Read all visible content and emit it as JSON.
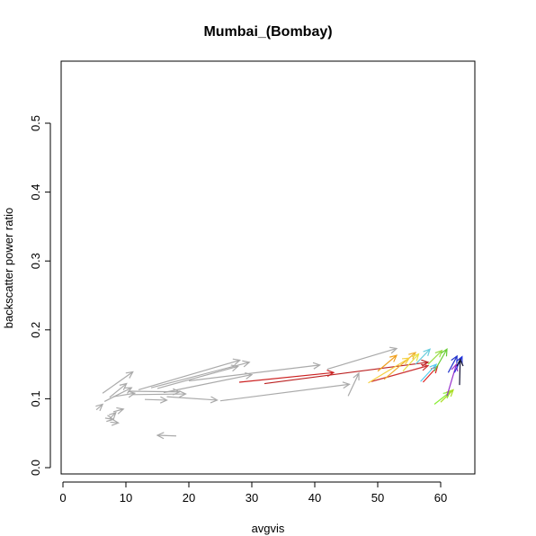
{
  "chart_data": {
    "type": "scatter",
    "title": "Mumbai_(Bombay)",
    "xlabel": "avgvis",
    "ylabel": "backscatter power ratio",
    "xlim": [
      0,
      65
    ],
    "ylim": [
      0,
      0.6
    ],
    "x_ticks": [
      0,
      10,
      20,
      30,
      40,
      50,
      60
    ],
    "y_ticks": [
      0.0,
      0.1,
      0.2,
      0.3,
      0.4,
      0.5
    ],
    "y_tick_labels": [
      "0.0",
      "0.1",
      "0.2",
      "0.3",
      "0.4",
      "0.5"
    ],
    "grid": false,
    "mark": "arrow",
    "arrows": [
      {
        "x0": 6.3,
        "y0": 0.108,
        "x1": 11.1,
        "y1": 0.139,
        "color": "#aaaaaa"
      },
      {
        "x0": 6.6,
        "y0": 0.096,
        "x1": 10.9,
        "y1": 0.116,
        "color": "#aaaaaa"
      },
      {
        "x0": 7.4,
        "y0": 0.102,
        "x1": 10.1,
        "y1": 0.122,
        "color": "#aaaaaa"
      },
      {
        "x0": 8.0,
        "y0": 0.103,
        "x1": 11.4,
        "y1": 0.108,
        "color": "#aaaaaa"
      },
      {
        "x0": 5.3,
        "y0": 0.084,
        "x1": 6.3,
        "y1": 0.092,
        "color": "#aaaaaa"
      },
      {
        "x0": 8.0,
        "y0": 0.081,
        "x1": 9.6,
        "y1": 0.085,
        "color": "#aaaaaa"
      },
      {
        "x0": 7.4,
        "y0": 0.071,
        "x1": 8.4,
        "y1": 0.08,
        "color": "#aaaaaa"
      },
      {
        "x0": 6.7,
        "y0": 0.072,
        "x1": 8.0,
        "y1": 0.07,
        "color": "#aaaaaa"
      },
      {
        "x0": 7.5,
        "y0": 0.066,
        "x1": 8.8,
        "y1": 0.065,
        "color": "#aaaaaa"
      },
      {
        "x0": 12.0,
        "y0": 0.113,
        "x1": 28.1,
        "y1": 0.156,
        "color": "#aaaaaa"
      },
      {
        "x0": 14.0,
        "y0": 0.116,
        "x1": 29.6,
        "y1": 0.153,
        "color": "#aaaaaa"
      },
      {
        "x0": 15.0,
        "y0": 0.115,
        "x1": 27.8,
        "y1": 0.147,
        "color": "#aaaaaa"
      },
      {
        "x0": 16.0,
        "y0": 0.109,
        "x1": 30.0,
        "y1": 0.135,
        "color": "#aaaaaa"
      },
      {
        "x0": 10.5,
        "y0": 0.111,
        "x1": 18.5,
        "y1": 0.11,
        "color": "#aaaaaa"
      },
      {
        "x0": 11.0,
        "y0": 0.106,
        "x1": 19.5,
        "y1": 0.107,
        "color": "#aaaaaa"
      },
      {
        "x0": 16.5,
        "y0": 0.103,
        "x1": 24.5,
        "y1": 0.098,
        "color": "#aaaaaa"
      },
      {
        "x0": 13.0,
        "y0": 0.099,
        "x1": 16.5,
        "y1": 0.098,
        "color": "#aaaaaa"
      },
      {
        "x0": 18.0,
        "y0": 0.046,
        "x1": 15.0,
        "y1": 0.047,
        "color": "#aaaaaa"
      },
      {
        "x0": 20.0,
        "y0": 0.126,
        "x1": 40.8,
        "y1": 0.149,
        "color": "#aaaaaa"
      },
      {
        "x0": 25.0,
        "y0": 0.097,
        "x1": 45.5,
        "y1": 0.121,
        "color": "#aaaaaa"
      },
      {
        "x0": 42.0,
        "y0": 0.143,
        "x1": 53.0,
        "y1": 0.173,
        "color": "#aaaaaa"
      },
      {
        "x0": 45.3,
        "y0": 0.104,
        "x1": 47.0,
        "y1": 0.137,
        "color": "#aaaaaa"
      },
      {
        "x0": 28.0,
        "y0": 0.124,
        "x1": 43.0,
        "y1": 0.138,
        "color": "#cc2222"
      },
      {
        "x0": 32.0,
        "y0": 0.122,
        "x1": 58.0,
        "y1": 0.153,
        "color": "#bb2222"
      },
      {
        "x0": 49.0,
        "y0": 0.125,
        "x1": 58.0,
        "y1": 0.148,
        "color": "#cc3333"
      },
      {
        "x0": 57.2,
        "y0": 0.124,
        "x1": 59.5,
        "y1": 0.147,
        "color": "#dd2222"
      },
      {
        "x0": 50.0,
        "y0": 0.14,
        "x1": 53.0,
        "y1": 0.163,
        "color": "#f0a020"
      },
      {
        "x0": 51.0,
        "y0": 0.128,
        "x1": 56.0,
        "y1": 0.167,
        "color": "#f0b030"
      },
      {
        "x0": 48.5,
        "y0": 0.123,
        "x1": 55.0,
        "y1": 0.159,
        "color": "#f5d040"
      },
      {
        "x0": 54.0,
        "y0": 0.14,
        "x1": 56.5,
        "y1": 0.165,
        "color": "#e8e040"
      },
      {
        "x0": 56.0,
        "y0": 0.15,
        "x1": 58.3,
        "y1": 0.172,
        "color": "#66ccdd"
      },
      {
        "x0": 56.8,
        "y0": 0.125,
        "x1": 59.3,
        "y1": 0.15,
        "color": "#55ccee"
      },
      {
        "x0": 58.0,
        "y0": 0.15,
        "x1": 60.2,
        "y1": 0.17,
        "color": "#99dd44"
      },
      {
        "x0": 59.0,
        "y0": 0.14,
        "x1": 61.0,
        "y1": 0.172,
        "color": "#66cc33"
      },
      {
        "x0": 59.0,
        "y0": 0.092,
        "x1": 61.5,
        "y1": 0.11,
        "color": "#88ee33"
      },
      {
        "x0": 60.0,
        "y0": 0.095,
        "x1": 62.0,
        "y1": 0.113,
        "color": "#aadd22"
      },
      {
        "x0": 61.0,
        "y0": 0.104,
        "x1": 62.5,
        "y1": 0.15,
        "color": "#9933cc"
      },
      {
        "x0": 61.2,
        "y0": 0.138,
        "x1": 62.6,
        "y1": 0.162,
        "color": "#2233cc"
      },
      {
        "x0": 62.2,
        "y0": 0.138,
        "x1": 63.4,
        "y1": 0.161,
        "color": "#2233dd"
      },
      {
        "x0": 63.0,
        "y0": 0.12,
        "x1": 63.1,
        "y1": 0.157,
        "color": "#111133"
      }
    ]
  }
}
